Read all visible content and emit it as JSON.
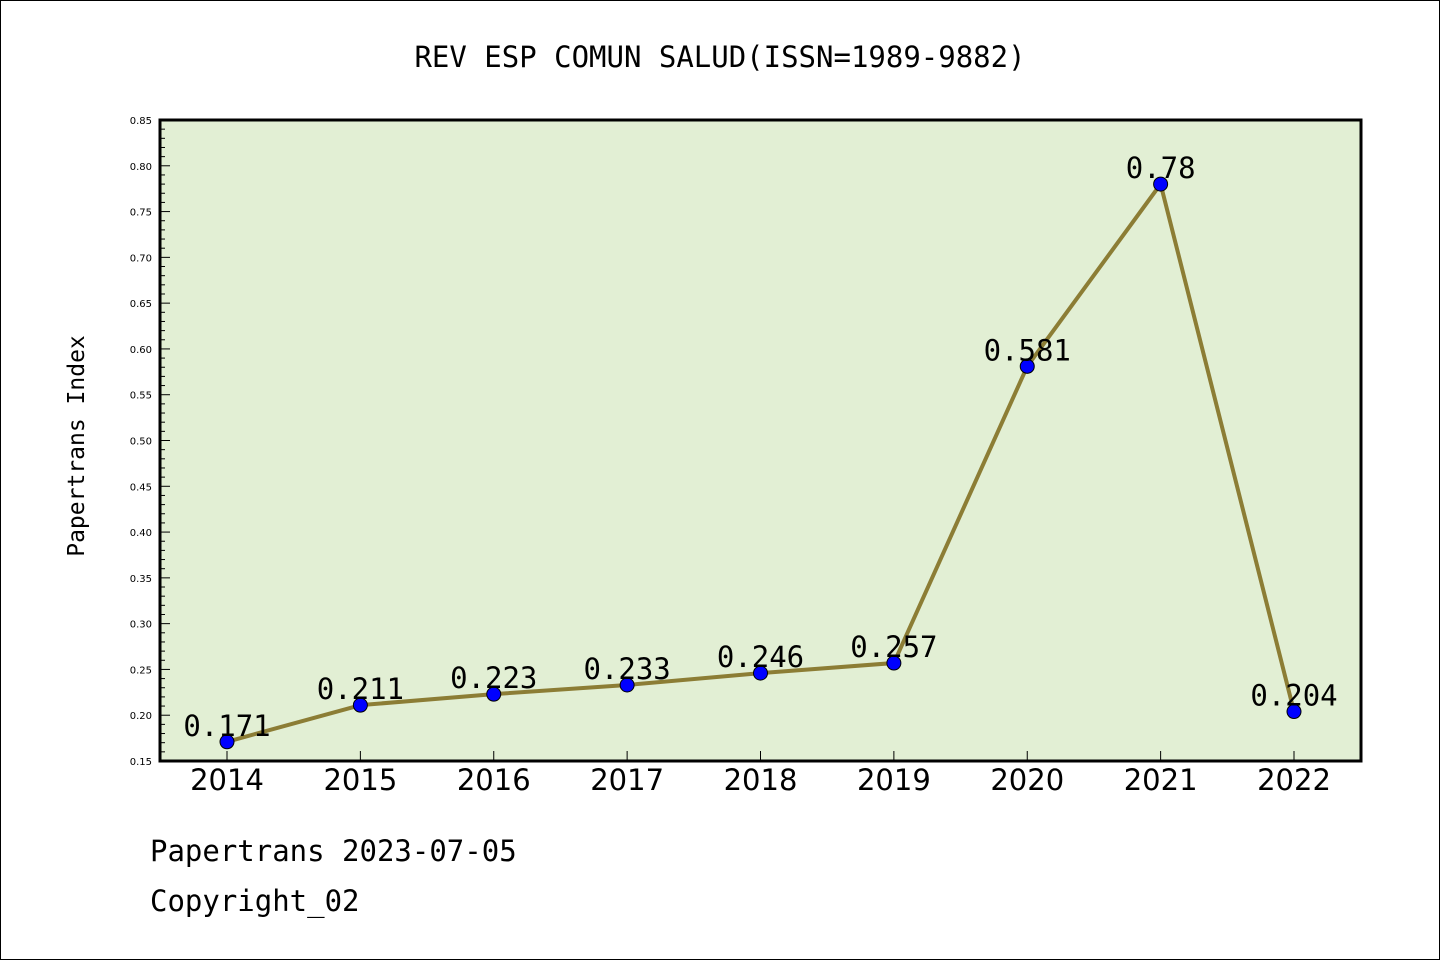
{
  "chart_data": {
    "type": "line",
    "title": "REV ESP COMUN SALUD(ISSN=1989-9882)",
    "xlabel": "",
    "ylabel": "Papertrans Index",
    "categories": [
      "2014",
      "2015",
      "2016",
      "2017",
      "2018",
      "2019",
      "2020",
      "2021",
      "2022"
    ],
    "values": [
      0.171,
      0.211,
      0.223,
      0.233,
      0.246,
      0.257,
      0.581,
      0.78,
      0.204
    ],
    "data_labels": [
      "0.171",
      "0.211",
      "0.223",
      "0.233",
      "0.246",
      "0.257",
      "0.581",
      "0.78",
      "0.204"
    ],
    "ylim": [
      0.15,
      0.85
    ],
    "yticks": [
      "0.15",
      "0.20",
      "0.25",
      "0.30",
      "0.35",
      "0.40",
      "0.45",
      "0.50",
      "0.55",
      "0.60",
      "0.65",
      "0.70",
      "0.75",
      "0.80",
      "0.85"
    ],
    "grid": false,
    "colors": {
      "plot_background": "#e2efd4",
      "line": "#8c7d35",
      "marker": "#0000ff"
    }
  },
  "footer": {
    "line1": "Papertrans 2023-07-05",
    "line2": "Copyright_02"
  }
}
